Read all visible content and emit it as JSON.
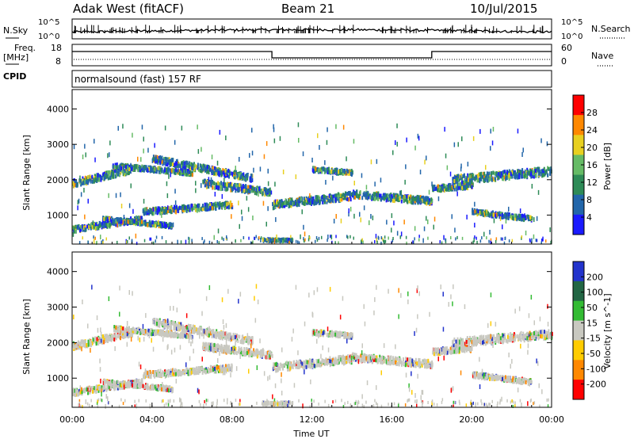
{
  "header": {
    "title_left": "Adak West (fitACF)",
    "title_center": "Beam 21",
    "title_right": "10/Jul/2015"
  },
  "top_panel": {
    "label_left": "N.Sky",
    "label_right": "N.Search",
    "axis_left_top": "10^5",
    "axis_left_bottom": "10^0",
    "axis_right_top": "10^5",
    "axis_right_bottom": "10^0"
  },
  "freq_panel": {
    "label_left_1": "Freq.",
    "label_left_2": "[MHz]",
    "label_right": "Nave",
    "ticks_left": [
      "18",
      "8"
    ],
    "ticks_right": [
      "60",
      "0"
    ],
    "freq_segments": [
      {
        "x": [
          "00:00",
          "10:00"
        ],
        "level": "high"
      },
      {
        "x": [
          "10:00",
          "18:00"
        ],
        "level": "low"
      },
      {
        "x": [
          "18:00",
          "24:00"
        ],
        "level": "high"
      }
    ]
  },
  "cpid": {
    "label": "CPID",
    "text": "normalsound (fast) 157 RF"
  },
  "chart_data": [
    {
      "type": "heatmap",
      "name": "power",
      "ylabel": "Slant Range [km]",
      "xlabel": "",
      "ylim": [
        180,
        4550
      ],
      "yticks": [
        "1000",
        "2000",
        "3000",
        "4000"
      ],
      "colorbar_label": "Power [dB]",
      "colorbar_ticks": [
        "4",
        "8",
        "12",
        "16",
        "20",
        "24",
        "28"
      ],
      "colorscale": [
        "#1a1aff",
        "#2266aa",
        "#2e8b57",
        "#66bb66",
        "#e8d020",
        "#ff8800",
        "#ff0000"
      ]
    },
    {
      "type": "heatmap",
      "name": "velocity",
      "ylabel": "Slant Range [km]",
      "xlabel": "Time UT",
      "ylim": [
        180,
        4550
      ],
      "yticks": [
        "1000",
        "2000",
        "3000",
        "4000"
      ],
      "xticks": [
        "00:00",
        "04:00",
        "08:00",
        "12:00",
        "16:00",
        "20:00",
        "00:00"
      ],
      "colorbar_label": "Velocity [m s^-1]",
      "colorbar_ticks": [
        "200",
        "100",
        "50",
        "15",
        "-15",
        "-50",
        "-100",
        "-200"
      ],
      "colorscale": [
        "#2233cc",
        "#226644",
        "#33bb33",
        "#c8c8c0",
        "#ffcc00",
        "#ff8800",
        "#ff0000"
      ]
    }
  ]
}
